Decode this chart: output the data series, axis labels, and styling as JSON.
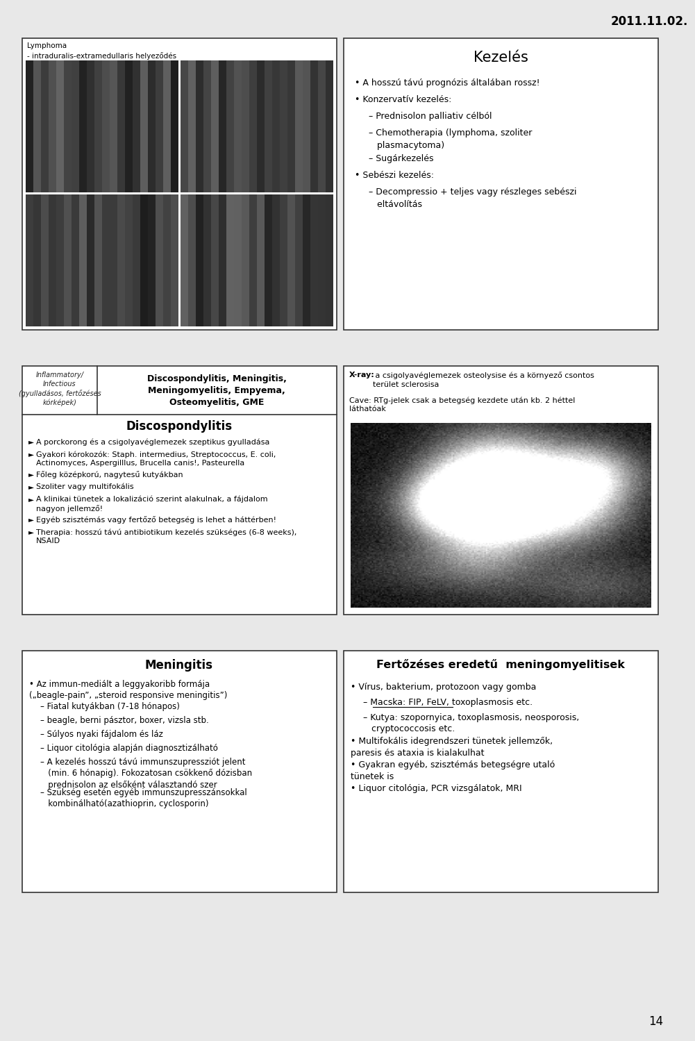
{
  "date_text": "2011.11.02.",
  "page_number": "14",
  "bg_color": "#e8e8e8",
  "panel1": {
    "label_top": "Lymphoma\n- intraduralis-extramedullaris helyeződés"
  },
  "panel2": {
    "title": "Kezelés",
    "bullets": [
      {
        "level": 0,
        "text": "A hosszú távú prognózis általában rossz!"
      },
      {
        "level": 0,
        "text": "Konzervatív kezelés:"
      },
      {
        "level": 1,
        "text": "– Prednisolon palliativ célból"
      },
      {
        "level": 1,
        "text": "– Chemotherapia (lymphoma, szoliter\n   plasmacytoma)"
      },
      {
        "level": 1,
        "text": "– Sugárkezelés"
      },
      {
        "level": 0,
        "text": "Sebészi kezelés:"
      },
      {
        "level": 1,
        "text": "– Decompressio + teljes vagy részleges sebészi\n   eltávolítás"
      }
    ]
  },
  "panel3": {
    "header_left": "Inflammatory/\nInfectious\n(gyulladásos, fertőzéses\nkórképek)",
    "header_right_bold": "Discospondylitis, Meningitis,\nMeningomyelitis, Empyema,\nOsteomyelitis, GME",
    "title": "Discospondylitis",
    "bullets": [
      {
        "text": "A porckorong és a csigolyavéglemezek szeptikus gyulladása"
      },
      {
        "text": "Gyakori kórokozók: Staph. intermedius, Streptococcus, E. coli,\nActinomyces, Aspergilllus, Brucella canis!, Pasteurella"
      },
      {
        "text": "Főleg középkorú, nagytesű kutyákban"
      },
      {
        "text": "Szoliter vagy multifokális"
      },
      {
        "text": "A klinikai tünetek a lokalizáció szerint alakulnak, a fájdalom\nnagyon jellemző!"
      },
      {
        "text": "Egyéb szisztémás vagy fertőző betegség is lehet a háttérben!"
      },
      {
        "text": "Therapia: hosszú távú antibiotikum kezelés szükséges (6-8 weeks),\nNSAID"
      }
    ]
  },
  "panel4": {
    "xray_label": "X-ray:",
    "xray_text": " a csigolyavéglemezek osteolysise és a környező csontos\nterület sclerosisa",
    "cave_text": "Cave: RTg-jelek csak a betegség kezdete után kb. 2 héttel\nláthatóak"
  },
  "panel5": {
    "title": "Meningitis",
    "bullets": [
      {
        "level": 0,
        "text": "Az immun-mediált a leggyakoribb formája\n(„beagle-pain”, „steroid responsive meningitis”)"
      },
      {
        "level": 1,
        "text": "– Fiatal kutyákban (7-18 hónapos)"
      },
      {
        "level": 1,
        "text": "– beagle, berni pásztor, boxer, vizsla stb."
      },
      {
        "level": 1,
        "text": "– Súlyos nyaki fájdalom és láz"
      },
      {
        "level": 1,
        "text": "– Liquor citológia alapján diagnosztizálható"
      },
      {
        "level": 1,
        "text": "– A kezelés hosszú távú immunszupressziót jelent\n   (min. 6 hónapig). Fokozatosan csökkenő dózisban\n   prednisolon az elsőként választandó szer"
      },
      {
        "level": 1,
        "text": "– Szükség esetén egyéb immunszupresszánsokkal\n   kombinálható(azathioprin, cyclosporin)"
      }
    ]
  },
  "panel6": {
    "title": "Fertőzéses eredetű  meningomyelitisek",
    "bullets": [
      {
        "level": 0,
        "text": "Vírus, bakterium, protozoon vagy gomba"
      },
      {
        "level": 1,
        "text": "– Macska: FIP, FeLV, toxoplasmosis etc.",
        "underline": true
      },
      {
        "level": 1,
        "text": "– Kutya: szopornyica, toxoplasmosis, neosporosis,\n   cryptococcosis etc."
      },
      {
        "level": 0,
        "text": "Multifokális idegrendszeri tünetek jellemzők,\nparesis és ataxia is kialakulhat"
      },
      {
        "level": 0,
        "text": "Gyakran egyéb, szisztémás betegségre utaló\ntünetek is"
      },
      {
        "level": 0,
        "text": "Liquor citológia, PCR vizsgálatok, MRI"
      }
    ]
  }
}
